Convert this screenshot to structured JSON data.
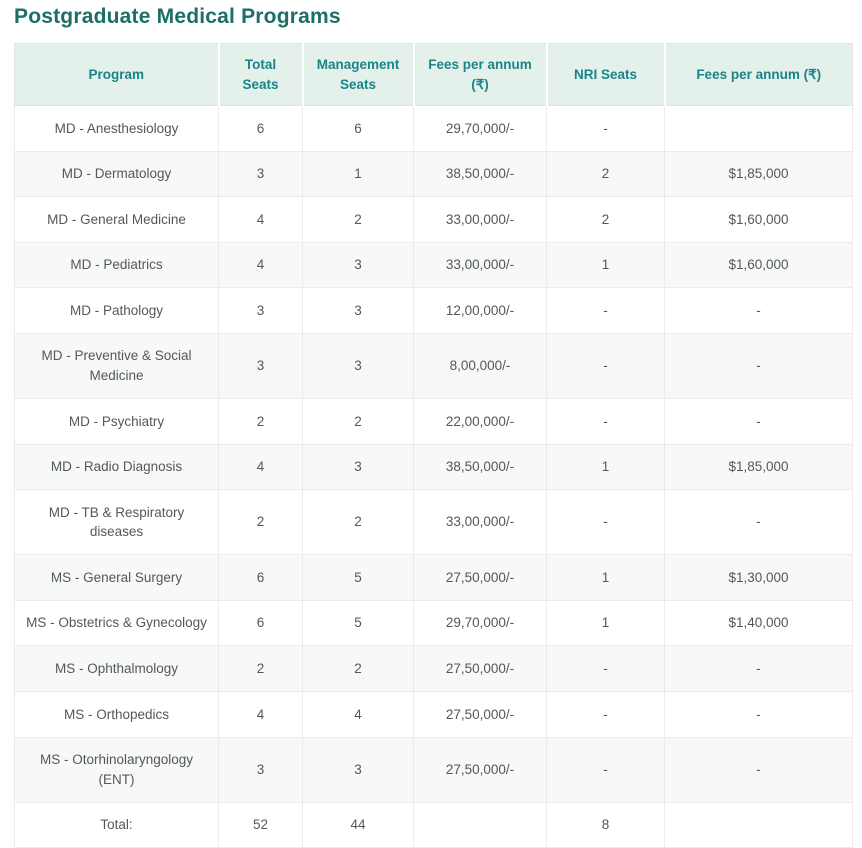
{
  "page": {
    "title": "Postgraduate Medical Programs"
  },
  "colors": {
    "title_text": "#1b6f64",
    "header_bg": "#e4f0ea",
    "header_text": "#18858a",
    "body_text": "#54575b",
    "row_alt_bg": "#f7f8f8",
    "border": "#e2e4e3"
  },
  "table": {
    "columns": [
      "Program",
      "Total Seats",
      "Management Seats",
      "Fees per annum (₹)",
      "NRI Seats",
      "Fees per annum (₹)"
    ],
    "rows": [
      [
        "MD - Anesthesiology",
        "6",
        "6",
        "29,70,000/-",
        "-",
        ""
      ],
      [
        "MD - Dermatology",
        "3",
        "1",
        "38,50,000/-",
        "2",
        "$1,85,000"
      ],
      [
        "MD - General Medicine",
        "4",
        "2",
        "33,00,000/-",
        "2",
        "$1,60,000"
      ],
      [
        "MD - Pediatrics",
        "4",
        "3",
        "33,00,000/-",
        "1",
        "$1,60,000"
      ],
      [
        "MD - Pathology",
        "3",
        "3",
        "12,00,000/-",
        "-",
        "-"
      ],
      [
        "MD - Preventive & Social Medicine",
        "3",
        "3",
        "8,00,000/-",
        "-",
        "-"
      ],
      [
        "MD - Psychiatry",
        "2",
        "2",
        "22,00,000/-",
        "-",
        "-"
      ],
      [
        "MD - Radio Diagnosis",
        "4",
        "3",
        "38,50,000/-",
        "1",
        "$1,85,000"
      ],
      [
        "MD - TB & Respiratory diseases",
        "2",
        "2",
        "33,00,000/-",
        "-",
        "-"
      ],
      [
        "MS - General Surgery",
        "6",
        "5",
        "27,50,000/-",
        "1",
        "$1,30,000"
      ],
      [
        "MS - Obstetrics & Gynecology",
        "6",
        "5",
        "29,70,000/-",
        "1",
        "$1,40,000"
      ],
      [
        "MS - Ophthalmology",
        "2",
        "2",
        "27,50,000/-",
        "-",
        "-"
      ],
      [
        "MS - Orthopedics",
        "4",
        "4",
        "27,50,000/-",
        "-",
        "-"
      ],
      [
        "MS - Otorhinolaryngology (ENT)",
        "3",
        "3",
        "27,50,000/-",
        "-",
        "-"
      ]
    ],
    "total_row": [
      "Total:",
      "52",
      "44",
      "",
      "8",
      ""
    ]
  }
}
